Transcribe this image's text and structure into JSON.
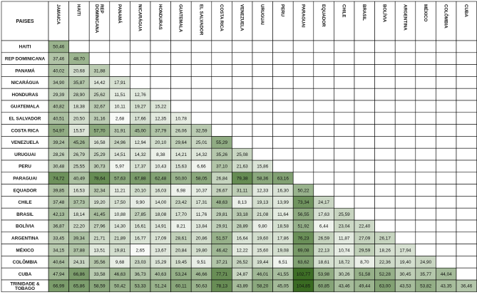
{
  "chart_data": {
    "type": "heatmap",
    "corner_label": "PAISES",
    "columns": [
      "JAMAICA",
      "HAITI",
      "REP DOMINICANA",
      "PANAMÁ",
      "NICARÁGUA",
      "HONDURAS",
      "GUATEMALA",
      "EL SALVADOR",
      "COSTA RICA",
      "VENEZUELA",
      "URUGUAI",
      "PERU",
      "PARAGUAI",
      "EQUADOR",
      "CHILE",
      "BRASIL",
      "BOLÍVIA",
      "ARGENTINA",
      "MÉXICO",
      "COLÔMBIA",
      "CUBA"
    ],
    "rows": [
      "HAITI",
      "REP DOMINICANA",
      "PANAMÁ",
      "NICARÁGUA",
      "HONDURAS",
      "GUATEMALA",
      "EL SALVADOR",
      "COSTA RICA",
      "VENEZUELA",
      "URUGUAI",
      "PERU",
      "PARAGUAI",
      "EQUADOR",
      "CHILE",
      "BRASIL",
      "BOLÍVIA",
      "ARGENTINA",
      "MÉXICO",
      "COLÔMBIA",
      "CUBA",
      "TRINIDADE & TOBAGO"
    ],
    "values": [
      [
        "50,46"
      ],
      [
        "37,46",
        "48,70"
      ],
      [
        "40,02",
        "20,68",
        "31,88"
      ],
      [
        "34,90",
        "35,87",
        "14,42",
        "17,91"
      ],
      [
        "29,39",
        "28,90",
        "25,62",
        "11,51",
        "12,76"
      ],
      [
        "40,82",
        "18,38",
        "32,67",
        "10,11",
        "19,27",
        "15,22"
      ],
      [
        "40,51",
        "20,50",
        "31,16",
        "2,68",
        "17,66",
        "12,35",
        "10,78"
      ],
      [
        "54,97",
        "15,57",
        "57,70",
        "31,91",
        "45,00",
        "37,79",
        "26,06",
        "32,59"
      ],
      [
        "39,24",
        "45,26",
        "16,58",
        "24,96",
        "12,94",
        "20,10",
        "29,64",
        "25,01",
        "55,29"
      ],
      [
        "28,26",
        "26,79",
        "25,29",
        "14,51",
        "14,32",
        "8,38",
        "14,21",
        "14,32",
        "35,26",
        "25,08"
      ],
      [
        "30,48",
        "25,55",
        "30,73",
        "5,97",
        "17,37",
        "10,43",
        "15,63",
        "6,66",
        "37,10",
        "21,63",
        "15,86"
      ],
      [
        "74,72",
        "40,49",
        "78,64",
        "57,63",
        "67,88",
        "62,48",
        "50,00",
        "58,05",
        "26,84",
        "79,38",
        "58,36",
        "63,16"
      ],
      [
        "39,85",
        "16,53",
        "32,34",
        "11,21",
        "20,10",
        "16,03",
        "6,98",
        "10,37",
        "26,67",
        "31,11",
        "12,33",
        "16,30",
        "50,22"
      ],
      [
        "37,48",
        "37,73",
        "19,20",
        "17,50",
        "9,90",
        "14,00",
        "23,42",
        "17,31",
        "48,63",
        "8,13",
        "19,13",
        "13,99",
        "73,34",
        "24,17"
      ],
      [
        "42,13",
        "18,14",
        "41,45",
        "10,88",
        "27,85",
        "18,08",
        "17,70",
        "11,76",
        "29,81",
        "33,18",
        "21,08",
        "11,64",
        "56,55",
        "17,63",
        "25,59"
      ],
      [
        "36,87",
        "22,20",
        "27,96",
        "14,30",
        "16,61",
        "14,91",
        "8,21",
        "13,84",
        "29,91",
        "28,89",
        "9,80",
        "18,58",
        "51,92",
        "6,44",
        "23,04",
        "22,40"
      ],
      [
        "33,45",
        "39,34",
        "21,71",
        "21,89",
        "16,77",
        "17,09",
        "28,61",
        "20,86",
        "51,57",
        "16,64",
        "19,60",
        "17,86",
        "76,23",
        "26,59",
        "11,87",
        "27,09",
        "26,17"
      ],
      [
        "34,15",
        "37,88",
        "13,51",
        "19,81",
        "2,65",
        "13,67",
        "20,84",
        "19,80",
        "46,42",
        "12,22",
        "15,60",
        "19,08",
        "69,08",
        "22,13",
        "10,74",
        "29,59",
        "18,26",
        "17,94"
      ],
      [
        "40,64",
        "24,31",
        "35,56",
        "9,68",
        "23,03",
        "15,29",
        "19,45",
        "9,51",
        "37,21",
        "26,52",
        "19,44",
        "6,51",
        "63,62",
        "18,61",
        "18,72",
        "8,70",
        "22,36",
        "19,40",
        "24,90"
      ],
      [
        "47,94",
        "66,86",
        "33,58",
        "46,63",
        "36,73",
        "40,63",
        "53,24",
        "46,66",
        "77,71",
        "24,87",
        "46,01",
        "41,55",
        "102,77",
        "53,98",
        "30,26",
        "51,58",
        "52,28",
        "30,45",
        "35,77",
        "44,04"
      ],
      [
        "66,99",
        "65,86",
        "58,59",
        "50,42",
        "53,33",
        "51,24",
        "60,11",
        "50,63",
        "78,13",
        "43,89",
        "58,20",
        "45,05",
        "104,85",
        "60,85",
        "43,46",
        "49,44",
        "63,00",
        "43,53",
        "53,82",
        "43,35",
        "36,46"
      ]
    ],
    "color_scale": {
      "low": "#ffffff",
      "high": "#3a6b22"
    },
    "grid": true
  }
}
